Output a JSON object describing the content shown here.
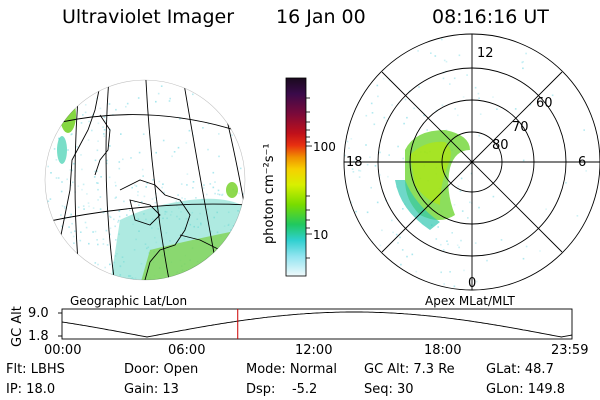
{
  "header": {
    "title": "Ultraviolet Imager",
    "date": "16 Jan 00",
    "time": "08:16:16 UT"
  },
  "geo_panel": {
    "label": "Geographic Lat/Lon"
  },
  "polar_panel": {
    "label": "Apex MLat/MLT",
    "mlt_labels": [
      "12",
      "18",
      "6",
      "0"
    ],
    "lat_labels": [
      "60",
      "70",
      "80"
    ]
  },
  "colorbar": {
    "unit_label": "photon cm⁻²s⁻¹",
    "tick_labels": [
      "100",
      "10"
    ],
    "colors": [
      "#1a0a1e",
      "#3a0a4a",
      "#6a0a3a",
      "#a0101a",
      "#d81a0a",
      "#f08a00",
      "#f6c800",
      "#e8f000",
      "#a8e800",
      "#58d800",
      "#20c8a0",
      "#40d8e0",
      "#a0e8f0",
      "#e8f8fa"
    ]
  },
  "altitude_plot": {
    "ylabel": "GC Alt",
    "y_ticks": [
      "9.0",
      "1.8"
    ],
    "x_ticks": [
      "00:00",
      "06:00",
      "12:00",
      "18:00",
      "23:59"
    ],
    "marker_hour": 8.27,
    "marker_color": "#cc0000"
  },
  "info": {
    "row1": {
      "filter": "Flt: LBHS",
      "door": "Door: Open",
      "mode": "Mode: Normal",
      "gc_alt": "GC Alt: 7.3 Re",
      "glat": "GLat:  48.7"
    },
    "row2": {
      "ip": "IP: 18.0",
      "gain": "Gain: 13",
      "dsp": "Dsp:    -5.2",
      "seq": "Seq: 30",
      "glon": "GLon: 149.8"
    }
  }
}
